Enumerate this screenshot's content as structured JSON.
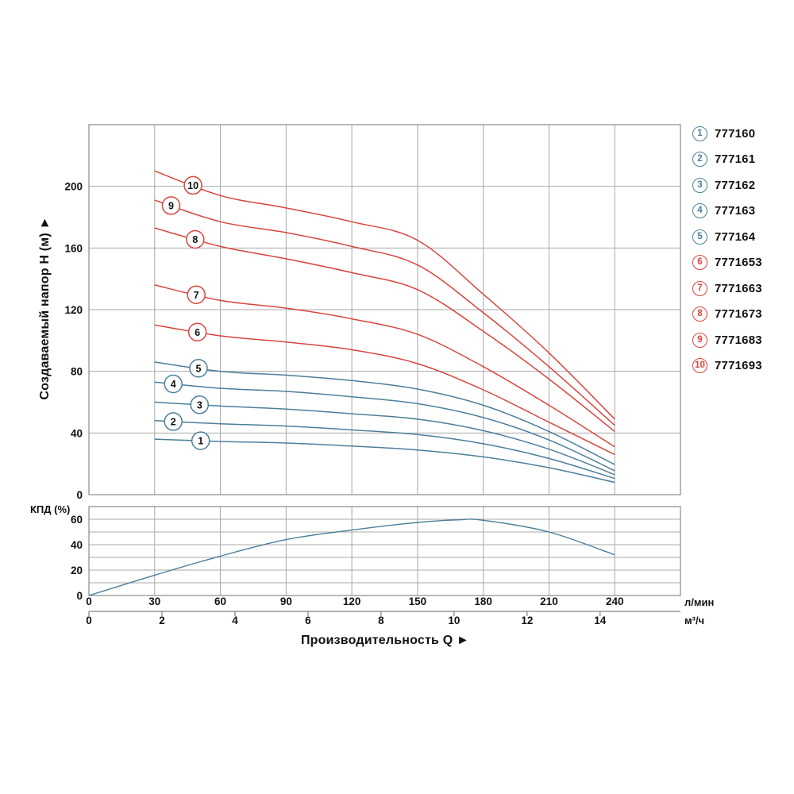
{
  "y_axis_title": "Создаваемый напор Н (м) ►",
  "efficiency_axis_label": "КПД (%)",
  "x_axis_title": "Производительность Q ►",
  "units": {
    "primary": "л/мин",
    "secondary": "м³/ч"
  },
  "colors": {
    "blue": "#4b7f9a",
    "red": "#d9453e",
    "grid": "#a9a9a9",
    "border": "#8a8a8a",
    "axis_line": "#666666",
    "text": "#111111"
  },
  "legend": {
    "items": [
      {
        "num": "1",
        "model": "777160",
        "group": "blue"
      },
      {
        "num": "2",
        "model": "777161",
        "group": "blue"
      },
      {
        "num": "3",
        "model": "777162",
        "group": "blue"
      },
      {
        "num": "4",
        "model": "777163",
        "group": "blue"
      },
      {
        "num": "5",
        "model": "777164",
        "group": "blue"
      },
      {
        "num": "6",
        "model": "7771653",
        "group": "red"
      },
      {
        "num": "7",
        "model": "7771663",
        "group": "red"
      },
      {
        "num": "8",
        "model": "7771673",
        "group": "red"
      },
      {
        "num": "9",
        "model": "7771683",
        "group": "red"
      },
      {
        "num": "10",
        "model": "7771693",
        "group": "red"
      }
    ]
  },
  "chart_data": {
    "type": "line",
    "main_chart": {
      "ylabel": "Создаваемый напор Н (м)",
      "xlabel_primary_unit": "л/мин",
      "xlabel_secondary_unit": "м³/ч",
      "ylim": [
        0,
        240
      ],
      "xlim_lmin": [
        0,
        270
      ],
      "yticks": [
        0,
        40,
        80,
        120,
        160,
        200
      ],
      "xticks_lmin": [
        0,
        30,
        60,
        90,
        120,
        150,
        180,
        210,
        240
      ],
      "xticks_m3h": [
        0,
        2,
        4,
        6,
        8,
        10,
        12,
        14
      ],
      "grid": true,
      "x_lmin": [
        30,
        60,
        90,
        120,
        150,
        180,
        210,
        240
      ],
      "series": [
        {
          "id": "1",
          "model": "777160",
          "group": "blue",
          "label_q": 51,
          "head_m": [
            36,
            34.5,
            33.5,
            31.5,
            29,
            24.5,
            17.5,
            8
          ]
        },
        {
          "id": "2",
          "model": "777161",
          "group": "blue",
          "label_q": 38.5,
          "head_m": [
            48,
            46,
            44.5,
            42,
            39,
            33,
            23.5,
            10.5
          ]
        },
        {
          "id": "3",
          "model": "777162",
          "group": "blue",
          "label_q": 50.5,
          "head_m": [
            60,
            57.5,
            55.5,
            52.5,
            49,
            41.5,
            29.5,
            13
          ]
        },
        {
          "id": "4",
          "model": "777163",
          "group": "blue",
          "label_q": 38.5,
          "head_m": [
            73,
            69,
            67,
            63.5,
            59,
            50,
            35.5,
            15.5
          ]
        },
        {
          "id": "5",
          "model": "777164",
          "group": "blue",
          "label_q": 50,
          "head_m": [
            86,
            80,
            77.5,
            74,
            68.5,
            58,
            41,
            19.5
          ]
        },
        {
          "id": "6",
          "model": "7771653",
          "group": "red",
          "label_q": 49.5,
          "head_m": [
            110,
            103,
            99,
            94,
            85,
            68,
            47,
            26
          ]
        },
        {
          "id": "7",
          "model": "7771663",
          "group": "red",
          "label_q": 49,
          "head_m": [
            136,
            126,
            121,
            114,
            104,
            83,
            58,
            31
          ]
        },
        {
          "id": "8",
          "model": "7771673",
          "group": "red",
          "label_q": 48.5,
          "head_m": [
            173,
            161,
            153,
            144,
            133,
            106,
            75,
            41
          ]
        },
        {
          "id": "9",
          "model": "7771683",
          "group": "red",
          "label_q": 37.5,
          "head_m": [
            191,
            177,
            170,
            161,
            149,
            118,
            83,
            45
          ]
        },
        {
          "id": "10",
          "model": "7771693",
          "group": "red",
          "label_q": 47.5,
          "head_m": [
            210,
            194,
            186,
            177,
            165,
            130,
            92,
            49
          ]
        }
      ]
    },
    "efficiency_chart": {
      "ylabel": "КПД (%)",
      "ylim": [
        0,
        70
      ],
      "yticks": [
        0,
        20,
        40,
        60
      ],
      "grid": true,
      "points_q_lmin_eff_pct": [
        [
          0,
          0
        ],
        [
          30,
          16
        ],
        [
          60,
          31
        ],
        [
          90,
          44
        ],
        [
          120,
          51.5
        ],
        [
          150,
          57.5
        ],
        [
          168,
          59.5
        ],
        [
          180,
          59.2
        ],
        [
          210,
          50
        ],
        [
          240,
          32
        ]
      ]
    }
  }
}
